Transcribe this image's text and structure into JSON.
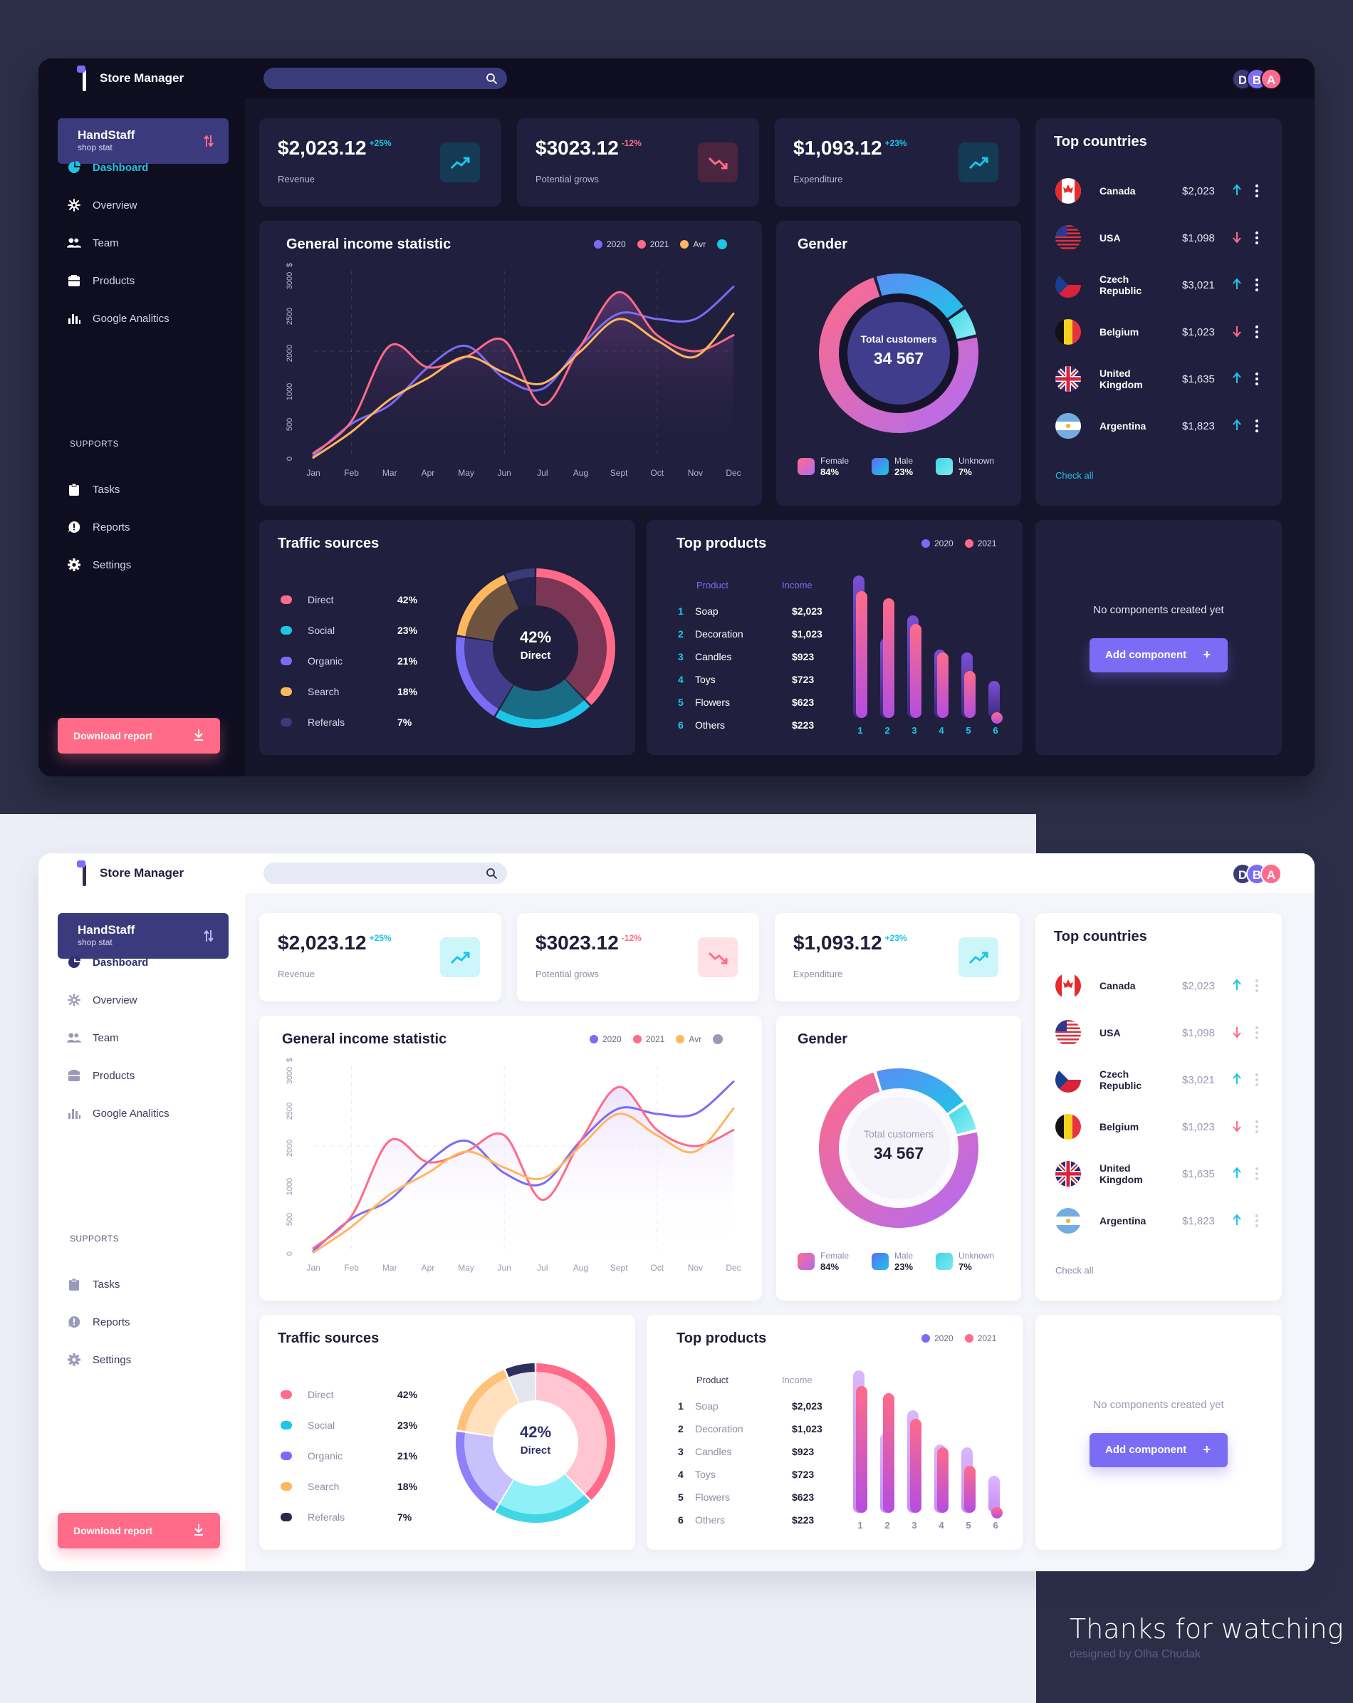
{
  "app": {
    "title": "Store Manager"
  },
  "search": {
    "placeholder": ""
  },
  "avatars": [
    "D",
    "B",
    "A"
  ],
  "colors": {
    "accent_purple": "#7b6cf6",
    "accent_pink": "#ff6b88",
    "accent_cyan": "#1ec5e6",
    "accent_orange": "#ffb75e",
    "dark_bg": "#15142a",
    "dark_card": "#201f3d",
    "light_bg": "#f5f6fb"
  },
  "sidebar": {
    "shop": {
      "title": "HandStaff",
      "subtitle": "shop stat"
    },
    "items": [
      {
        "label": "Dashboard",
        "icon": "pie-chart-icon",
        "active": true
      },
      {
        "label": "Overview",
        "icon": "asterisk-icon"
      },
      {
        "label": "Team",
        "icon": "users-icon"
      },
      {
        "label": "Products",
        "icon": "box-icon"
      },
      {
        "label": "Google Analitics",
        "icon": "bar-chart-icon"
      }
    ],
    "supports_label": "SUPPORTS",
    "support_items": [
      {
        "label": "Tasks",
        "icon": "clipboard-icon"
      },
      {
        "label": "Reports",
        "icon": "alert-bubble-icon"
      },
      {
        "label": "Settings",
        "icon": "gear-icon"
      }
    ],
    "download_label": "Download report"
  },
  "stats": [
    {
      "value": "$2,023.12",
      "change": "+25%",
      "label": "Revenue",
      "trend": "up"
    },
    {
      "value": "$3023.12",
      "change": "-12%",
      "label": "Potential grows",
      "trend": "down"
    },
    {
      "value": "$1,093.12",
      "change": "+23%",
      "label": "Expenditure",
      "trend": "up"
    }
  ],
  "income": {
    "title": "General income statistic",
    "legend": [
      "2020",
      "2021",
      "Avr"
    ],
    "y_unit": "$",
    "chart_data": {
      "type": "line",
      "x": [
        "Jan",
        "Feb",
        "Mar",
        "Apr",
        "May",
        "Jun",
        "Jul",
        "Aug",
        "Sept",
        "Oct",
        "Nov",
        "Dec"
      ],
      "yticks": [
        0,
        500,
        1000,
        2000,
        2500,
        3000
      ],
      "ylim": [
        0,
        3500
      ],
      "series": [
        {
          "name": "2020",
          "values": [
            50,
            650,
            1000,
            1700,
            2100,
            1500,
            1300,
            2100,
            2700,
            2600,
            2600,
            3200
          ]
        },
        {
          "name": "2021",
          "values": [
            100,
            700,
            2100,
            1700,
            1900,
            2200,
            1000,
            2100,
            3100,
            2300,
            2000,
            2300
          ]
        },
        {
          "name": "Avr",
          "values": [
            20,
            500,
            1100,
            1500,
            1900,
            1600,
            1400,
            2000,
            2600,
            2200,
            1900,
            2700
          ]
        }
      ]
    }
  },
  "gender": {
    "title": "Gender",
    "center_label": "Total customers",
    "total": "34 567",
    "chart_data": {
      "type": "pie",
      "categories": [
        "Female",
        "Male",
        "Unknown"
      ],
      "values": [
        84,
        23,
        7
      ],
      "value_labels": [
        "84%",
        "23%",
        "7%"
      ]
    }
  },
  "countries": {
    "title": "Top countries",
    "rows": [
      {
        "name": "Canada",
        "value": "$2,023",
        "trend": "up"
      },
      {
        "name": "USA",
        "value": "$1,098",
        "trend": "down"
      },
      {
        "name": "Czech Republic",
        "value": "$3,021",
        "trend": "up"
      },
      {
        "name": "Belgium",
        "value": "$1,023",
        "trend": "down"
      },
      {
        "name": "United Kingdom",
        "value": "$1,635",
        "trend": "up"
      },
      {
        "name": "Argentina",
        "value": "$1,823",
        "trend": "up"
      }
    ],
    "check_all": "Check all"
  },
  "traffic": {
    "title": "Traffic sources",
    "center_value": "42%",
    "center_label": "Direct",
    "chart_data": {
      "type": "pie",
      "categories": [
        "Direct",
        "Social",
        "Organic",
        "Search",
        "Referals"
      ],
      "values": [
        42,
        23,
        21,
        18,
        7
      ],
      "value_labels": [
        "42%",
        "23%",
        "21%",
        "18%",
        "7%"
      ]
    }
  },
  "products": {
    "title": "Top products",
    "legend": [
      "2020",
      "2021"
    ],
    "col_product": "Product",
    "col_income": "Income",
    "rows": [
      {
        "rank": "1",
        "name": "Soap",
        "income": "$2,023"
      },
      {
        "rank": "2",
        "name": "Decoration",
        "income": "$1,023"
      },
      {
        "rank": "3",
        "name": "Candles",
        "income": "$923"
      },
      {
        "rank": "4",
        "name": "Toys",
        "income": "$723"
      },
      {
        "rank": "5",
        "name": "Flowers",
        "income": "$623"
      },
      {
        "rank": "6",
        "name": "Others",
        "income": "$223"
      }
    ],
    "chart_data": {
      "type": "bar",
      "categories": [
        "1",
        "2",
        "3",
        "4",
        "5",
        "6"
      ],
      "series": [
        {
          "name": "2020",
          "values": [
            100,
            56,
            72,
            48,
            46,
            26
          ]
        },
        {
          "name": "2021",
          "values": [
            89,
            84,
            66,
            46,
            33,
            4
          ]
        }
      ],
      "ylim": [
        0,
        100
      ]
    }
  },
  "empty": {
    "text": "No components created yet",
    "button": "Add component",
    "plus": "+"
  },
  "footer": {
    "thanks": "Thanks for watching",
    "credit": "designed by Olha Chudak"
  }
}
